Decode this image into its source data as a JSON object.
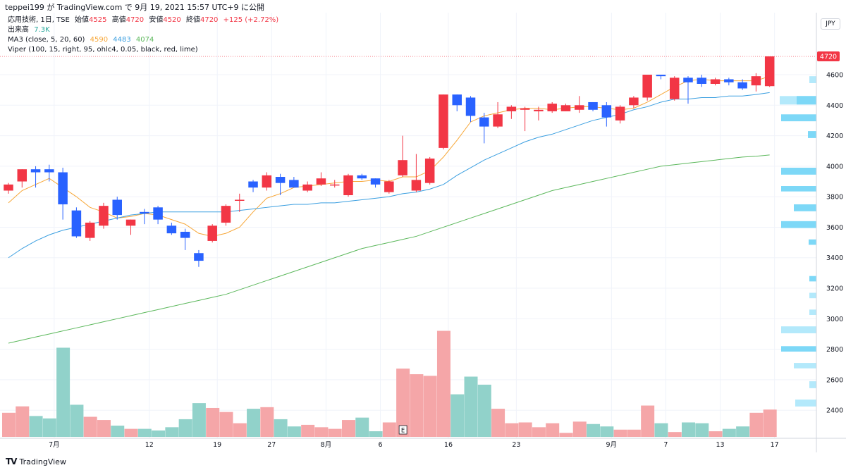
{
  "header": {
    "text": "teppei199 が TradingView.com で 9月 19, 2021 15:57 UTC+9 に公開"
  },
  "legend": {
    "line1": {
      "symbol": "応用技術, 1日, TSE",
      "open_label": "始値",
      "open": "4525",
      "high_label": "高値",
      "high": "4720",
      "low_label": "安値",
      "low": "4520",
      "close_label": "終値",
      "close": "4720",
      "change": "+125 (+2.72%)"
    },
    "line2": {
      "label": "出来高",
      "value": "7.3K"
    },
    "line3": {
      "label": "MA3 (close, 5, 20, 60)",
      "v1": "4590",
      "v2": "4483",
      "v3": "4074"
    },
    "line4": {
      "label": "Viper (100, 15, right, 95, ohlc4, 0.05, black, red, lime)"
    }
  },
  "currency": "JPY",
  "last_price": "4720",
  "colors": {
    "up": "#f23645",
    "down": "#2962ff",
    "vol_up": "#f5a6a8",
    "vol_down": "#91d2ca",
    "ma5": "#f7a738",
    "ma20": "#3b9fe0",
    "ma60": "#5cb85c",
    "vp": "#7dd8f7",
    "vp_light": "#b3e9fb"
  },
  "footer": {
    "logo": "TV",
    "brand": "TradingView"
  },
  "chart_data": {
    "type": "candlestick",
    "y_axis_ticks": [
      2400,
      2600,
      2800,
      3000,
      3200,
      3400,
      3600,
      3800,
      4000,
      4200,
      4400,
      4600
    ],
    "ylim": [
      2265,
      4800
    ],
    "x_tick_labels": [
      {
        "i": 3,
        "label": "7月"
      },
      {
        "i": 10,
        "label": "12"
      },
      {
        "i": 15,
        "label": "19"
      },
      {
        "i": 19,
        "label": "27"
      },
      {
        "i": 23,
        "label": "8月"
      },
      {
        "i": 27,
        "label": "6"
      },
      {
        "i": 32,
        "label": "16"
      },
      {
        "i": 37,
        "label": "23"
      },
      {
        "i": 44,
        "label": "9月"
      },
      {
        "i": 48,
        "label": "7"
      },
      {
        "i": 52,
        "label": "13"
      },
      {
        "i": 56,
        "label": "17"
      }
    ],
    "event_marker": {
      "i": 29,
      "label": "E"
    },
    "candles": [
      {
        "o": 3840,
        "h": 3890,
        "l": 3820,
        "c": 3880,
        "v": 30
      },
      {
        "o": 3900,
        "h": 3980,
        "l": 3860,
        "c": 3980,
        "v": 38
      },
      {
        "o": 3980,
        "h": 4000,
        "l": 3860,
        "c": 3960,
        "v": 26
      },
      {
        "o": 3980,
        "h": 4010,
        "l": 3900,
        "c": 3960,
        "v": 23
      },
      {
        "o": 3960,
        "h": 3990,
        "l": 3650,
        "c": 3750,
        "v": 111
      },
      {
        "o": 3710,
        "h": 3730,
        "l": 3530,
        "c": 3540,
        "v": 40
      },
      {
        "o": 3530,
        "h": 3640,
        "l": 3510,
        "c": 3630,
        "v": 25
      },
      {
        "o": 3610,
        "h": 3760,
        "l": 3590,
        "c": 3740,
        "v": 21
      },
      {
        "o": 3780,
        "h": 3800,
        "l": 3650,
        "c": 3680,
        "v": 14
      },
      {
        "o": 3610,
        "h": 3650,
        "l": 3550,
        "c": 3650,
        "v": 10
      },
      {
        "o": 3700,
        "h": 3720,
        "l": 3620,
        "c": 3690,
        "v": 10
      },
      {
        "o": 3730,
        "h": 3740,
        "l": 3620,
        "c": 3650,
        "v": 8
      },
      {
        "o": 3610,
        "h": 3630,
        "l": 3550,
        "c": 3560,
        "v": 12
      },
      {
        "o": 3570,
        "h": 3590,
        "l": 3450,
        "c": 3530,
        "v": 22
      },
      {
        "o": 3430,
        "h": 3450,
        "l": 3340,
        "c": 3380,
        "v": 42
      },
      {
        "o": 3510,
        "h": 3620,
        "l": 3500,
        "c": 3610,
        "v": 36
      },
      {
        "o": 3630,
        "h": 3750,
        "l": 3610,
        "c": 3740,
        "v": 31
      },
      {
        "o": 3780,
        "h": 3820,
        "l": 3700,
        "c": 3780,
        "v": 17
      },
      {
        "o": 3900,
        "h": 3910,
        "l": 3830,
        "c": 3860,
        "v": 35
      },
      {
        "o": 3860,
        "h": 3960,
        "l": 3840,
        "c": 3940,
        "v": 37
      },
      {
        "o": 3930,
        "h": 3950,
        "l": 3810,
        "c": 3890,
        "v": 22
      },
      {
        "o": 3910,
        "h": 3930,
        "l": 3860,
        "c": 3860,
        "v": 13
      },
      {
        "o": 3840,
        "h": 3900,
        "l": 3830,
        "c": 3880,
        "v": 15
      },
      {
        "o": 3880,
        "h": 3960,
        "l": 3870,
        "c": 3920,
        "v": 12
      },
      {
        "o": 3880,
        "h": 3910,
        "l": 3860,
        "c": 3880,
        "v": 10
      },
      {
        "o": 3810,
        "h": 3950,
        "l": 3800,
        "c": 3940,
        "v": 21
      },
      {
        "o": 3940,
        "h": 3950,
        "l": 3910,
        "c": 3920,
        "v": 24
      },
      {
        "o": 3920,
        "h": 3920,
        "l": 3860,
        "c": 3880,
        "v": 7
      },
      {
        "o": 3830,
        "h": 3910,
        "l": 3820,
        "c": 3900,
        "v": 18
      },
      {
        "o": 3940,
        "h": 4200,
        "l": 3930,
        "c": 4040,
        "v": 85
      },
      {
        "o": 3840,
        "h": 4080,
        "l": 3830,
        "c": 3910,
        "v": 78
      },
      {
        "o": 3890,
        "h": 4060,
        "l": 3880,
        "c": 4050,
        "v": 76
      },
      {
        "o": 4120,
        "h": 4470,
        "l": 4110,
        "c": 4470,
        "v": 132
      },
      {
        "o": 4470,
        "h": 4470,
        "l": 4360,
        "c": 4400,
        "v": 53
      },
      {
        "o": 4450,
        "h": 4460,
        "l": 4290,
        "c": 4330,
        "v": 75
      },
      {
        "o": 4320,
        "h": 4350,
        "l": 4150,
        "c": 4260,
        "v": 65
      },
      {
        "o": 4260,
        "h": 4420,
        "l": 4250,
        "c": 4340,
        "v": 35
      },
      {
        "o": 4360,
        "h": 4400,
        "l": 4310,
        "c": 4390,
        "v": 17
      },
      {
        "o": 4370,
        "h": 4390,
        "l": 4230,
        "c": 4380,
        "v": 18
      },
      {
        "o": 4360,
        "h": 4390,
        "l": 4300,
        "c": 4370,
        "v": 12
      },
      {
        "o": 4360,
        "h": 4420,
        "l": 4350,
        "c": 4410,
        "v": 17
      },
      {
        "o": 4360,
        "h": 4410,
        "l": 4360,
        "c": 4400,
        "v": 5
      },
      {
        "o": 4370,
        "h": 4460,
        "l": 4350,
        "c": 4400,
        "v": 19
      },
      {
        "o": 4420,
        "h": 4420,
        "l": 4360,
        "c": 4370,
        "v": 16
      },
      {
        "o": 4400,
        "h": 4420,
        "l": 4260,
        "c": 4320,
        "v": 13
      },
      {
        "o": 4300,
        "h": 4400,
        "l": 4280,
        "c": 4390,
        "v": 9
      },
      {
        "o": 4400,
        "h": 4460,
        "l": 4380,
        "c": 4450,
        "v": 9
      },
      {
        "o": 4450,
        "h": 4600,
        "l": 4430,
        "c": 4600,
        "v": 39
      },
      {
        "o": 4600,
        "h": 4600,
        "l": 4570,
        "c": 4590,
        "v": 17
      },
      {
        "o": 4440,
        "h": 4590,
        "l": 4430,
        "c": 4580,
        "v": 6
      },
      {
        "o": 4580,
        "h": 4590,
        "l": 4410,
        "c": 4550,
        "v": 18
      },
      {
        "o": 4580,
        "h": 4600,
        "l": 4520,
        "c": 4540,
        "v": 17
      },
      {
        "o": 4540,
        "h": 4580,
        "l": 4530,
        "c": 4570,
        "v": 7
      },
      {
        "o": 4570,
        "h": 4580,
        "l": 4530,
        "c": 4550,
        "v": 10
      },
      {
        "o": 4550,
        "h": 4570,
        "l": 4500,
        "c": 4510,
        "v": 13
      },
      {
        "o": 4530,
        "h": 4610,
        "l": 4490,
        "c": 4590,
        "v": 30
      },
      {
        "o": 4525,
        "h": 4720,
        "l": 4520,
        "c": 4720,
        "v": 34
      }
    ],
    "ma5": [
      3760,
      3840,
      3880,
      3920,
      3860,
      3800,
      3730,
      3700,
      3660,
      3670,
      3690,
      3680,
      3650,
      3620,
      3560,
      3540,
      3560,
      3600,
      3700,
      3790,
      3820,
      3860,
      3870,
      3880,
      3890,
      3900,
      3900,
      3910,
      3900,
      3930,
      3930,
      3970,
      4060,
      4170,
      4290,
      4330,
      4350,
      4370,
      4380,
      4380,
      4370,
      4380,
      4390,
      4390,
      4380,
      4370,
      4380,
      4420,
      4470,
      4520,
      4560,
      4570,
      4560,
      4560,
      4560,
      4560,
      4590
    ],
    "ma20": [
      3400,
      3460,
      3510,
      3550,
      3580,
      3600,
      3620,
      3640,
      3660,
      3680,
      3690,
      3700,
      3700,
      3700,
      3700,
      3700,
      3700,
      3710,
      3720,
      3730,
      3740,
      3750,
      3750,
      3760,
      3760,
      3770,
      3780,
      3790,
      3800,
      3820,
      3830,
      3850,
      3880,
      3940,
      3990,
      4040,
      4080,
      4120,
      4160,
      4190,
      4210,
      4240,
      4270,
      4300,
      4320,
      4340,
      4370,
      4390,
      4420,
      4440,
      4440,
      4450,
      4450,
      4460,
      4460,
      4470,
      4483
    ],
    "ma60": [
      2840,
      2860,
      2880,
      2900,
      2920,
      2940,
      2960,
      2980,
      3000,
      3020,
      3040,
      3060,
      3080,
      3100,
      3120,
      3140,
      3160,
      3190,
      3220,
      3250,
      3280,
      3310,
      3340,
      3370,
      3400,
      3430,
      3460,
      3480,
      3500,
      3520,
      3540,
      3570,
      3600,
      3630,
      3660,
      3690,
      3720,
      3750,
      3780,
      3810,
      3840,
      3860,
      3880,
      3900,
      3920,
      3940,
      3960,
      3980,
      4000,
      4010,
      4020,
      4030,
      4040,
      4050,
      4060,
      4065,
      4074
    ],
    "volume_profile": [
      {
        "low": 4540,
        "high": 4590,
        "width": 10,
        "light": true
      },
      {
        "low": 4400,
        "high": 4460,
        "width": 52,
        "light": true
      },
      {
        "low": 4400,
        "high": 4460,
        "width": 28,
        "light": false
      },
      {
        "low": 4290,
        "high": 4340,
        "width": 50,
        "light": false
      },
      {
        "low": 4180,
        "high": 4230,
        "width": 12,
        "light": false
      },
      {
        "low": 3940,
        "high": 3990,
        "width": 50,
        "light": false
      },
      {
        "low": 3830,
        "high": 3870,
        "width": 50,
        "light": false
      },
      {
        "low": 3700,
        "high": 3750,
        "width": 32,
        "light": false
      },
      {
        "low": 3590,
        "high": 3640,
        "width": 50,
        "light": false
      },
      {
        "low": 3480,
        "high": 3520,
        "width": 11,
        "light": false
      },
      {
        "low": 3240,
        "high": 3280,
        "width": 10,
        "light": false
      },
      {
        "low": 3130,
        "high": 3170,
        "width": 10,
        "light": true
      },
      {
        "low": 3020,
        "high": 3060,
        "width": 10,
        "light": true
      },
      {
        "low": 2900,
        "high": 2950,
        "width": 50,
        "light": true
      },
      {
        "low": 2780,
        "high": 2820,
        "width": 50,
        "light": false
      },
      {
        "low": 2670,
        "high": 2710,
        "width": 32,
        "light": true
      },
      {
        "low": 2540,
        "high": 2590,
        "width": 10,
        "light": true
      },
      {
        "low": 2420,
        "high": 2470,
        "width": 30,
        "light": true
      }
    ]
  }
}
